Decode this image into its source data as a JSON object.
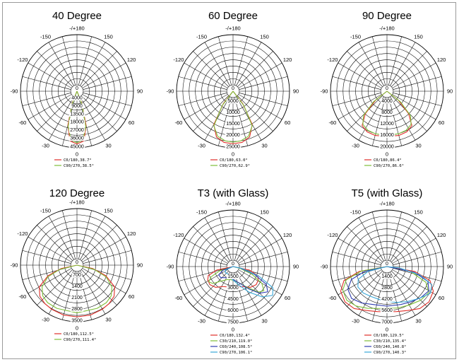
{
  "chart_data": [
    {
      "type": "polar",
      "title": "40 Degree",
      "angle_labels": [
        "-/+180",
        "150",
        "120",
        "90",
        "60",
        "30",
        "0",
        "-30",
        "-60",
        "-90",
        "-120",
        "-150"
      ],
      "radial_labels": [
        "0",
        "4000",
        "9000",
        "13500",
        "18000",
        "27000",
        "36000",
        "45000"
      ],
      "rmax": 45000,
      "series": [
        {
          "name": "C0/180,38.7°",
          "color": "#e0302a",
          "points": [
            [
              -30,
              0
            ],
            [
              -22,
              10000
            ],
            [
              -15,
              28000
            ],
            [
              -8,
              40000
            ],
            [
              0,
              42000
            ],
            [
              8,
              40000
            ],
            [
              15,
              28000
            ],
            [
              22,
              10000
            ],
            [
              30,
              0
            ]
          ]
        },
        {
          "name": "C90/270,38.5°",
          "color": "#7fbf3a",
          "points": [
            [
              -30,
              0
            ],
            [
              -21,
              11000
            ],
            [
              -14,
              29000
            ],
            [
              -7,
              39000
            ],
            [
              0,
              41000
            ],
            [
              7,
              39000
            ],
            [
              14,
              29000
            ],
            [
              21,
              11000
            ],
            [
              30,
              0
            ]
          ]
        }
      ]
    },
    {
      "type": "polar",
      "title": "60 Degree",
      "angle_labels": [
        "-/+180",
        "150",
        "120",
        "90",
        "60",
        "30",
        "0",
        "-30",
        "-60",
        "-90",
        "-120",
        "-150"
      ],
      "radial_labels": [
        "0",
        "5000",
        "10000",
        "15000",
        "20000",
        "25000"
      ],
      "rmax": 25000,
      "series": [
        {
          "name": "C0/180,63.0°",
          "color": "#e0302a",
          "points": [
            [
              -45,
              0
            ],
            [
              -38,
              7000
            ],
            [
              -30,
              17000
            ],
            [
              -20,
              21500
            ],
            [
              -10,
              23000
            ],
            [
              0,
              23200
            ],
            [
              10,
              23000
            ],
            [
              20,
              21500
            ],
            [
              30,
              17000
            ],
            [
              38,
              7000
            ],
            [
              45,
              0
            ]
          ]
        },
        {
          "name": "C90/270,62.9°",
          "color": "#7fbf3a",
          "points": [
            [
              -45,
              0
            ],
            [
              -37,
              8000
            ],
            [
              -29,
              17500
            ],
            [
              -19,
              21000
            ],
            [
              -9,
              22200
            ],
            [
              0,
              22500
            ],
            [
              9,
              22200
            ],
            [
              19,
              21000
            ],
            [
              29,
              17500
            ],
            [
              37,
              8000
            ],
            [
              45,
              0
            ]
          ]
        }
      ]
    },
    {
      "type": "polar",
      "title": "90 Degree",
      "angle_labels": [
        "-/+180",
        "150",
        "120",
        "90",
        "60",
        "30",
        "0",
        "-30",
        "-60",
        "-90",
        "-120",
        "-150"
      ],
      "radial_labels": [
        "0",
        "4000",
        "8000",
        "12000",
        "16000",
        "20000"
      ],
      "rmax": 20000,
      "series": [
        {
          "name": "C0/180,86.4°",
          "color": "#e0302a",
          "points": [
            [
              -60,
              0
            ],
            [
              -52,
              5000
            ],
            [
              -44,
              11000
            ],
            [
              -36,
              15000
            ],
            [
              -26,
              16000
            ],
            [
              -15,
              16200
            ],
            [
              0,
              16000
            ],
            [
              15,
              16200
            ],
            [
              26,
              16000
            ],
            [
              36,
              15000
            ],
            [
              44,
              11000
            ],
            [
              52,
              5000
            ],
            [
              60,
              0
            ]
          ]
        },
        {
          "name": "C90/270,86.6°",
          "color": "#7fbf3a",
          "points": [
            [
              -60,
              0
            ],
            [
              -52,
              6000
            ],
            [
              -44,
              12000
            ],
            [
              -36,
              14500
            ],
            [
              -26,
              15400
            ],
            [
              -15,
              15600
            ],
            [
              0,
              15500
            ],
            [
              15,
              15600
            ],
            [
              26,
              15400
            ],
            [
              36,
              14500
            ],
            [
              44,
              12000
            ],
            [
              52,
              6000
            ],
            [
              60,
              0
            ]
          ]
        }
      ]
    },
    {
      "type": "polar",
      "title": "120 Degree",
      "angle_labels": [
        "-/+180",
        "150",
        "120",
        "90",
        "60",
        "30",
        "0",
        "-30",
        "-60",
        "-90",
        "-120",
        "-150"
      ],
      "radial_labels": [
        "0",
        "700",
        "1400",
        "2100",
        "2800",
        "3500"
      ],
      "rmax": 3500,
      "series": [
        {
          "name": "C0/180,112.5°",
          "color": "#e0302a",
          "points": [
            [
              -85,
              0
            ],
            [
              -78,
              1000
            ],
            [
              -70,
              1900
            ],
            [
              -60,
              2700
            ],
            [
              -50,
              3000
            ],
            [
              -40,
              3100
            ],
            [
              -30,
              3150
            ],
            [
              -15,
              3200
            ],
            [
              0,
              3200
            ],
            [
              15,
              3200
            ],
            [
              30,
              3150
            ],
            [
              40,
              3100
            ],
            [
              50,
              3000
            ],
            [
              60,
              2700
            ],
            [
              70,
              1900
            ],
            [
              78,
              1000
            ],
            [
              85,
              0
            ]
          ]
        },
        {
          "name": "C90/270,111.4°",
          "color": "#7fbf3a",
          "points": [
            [
              -84,
              0
            ],
            [
              -76,
              1100
            ],
            [
              -68,
              1950
            ],
            [
              -58,
              2550
            ],
            [
              -48,
              2850
            ],
            [
              -38,
              2950
            ],
            [
              -25,
              2950
            ],
            [
              0,
              2950
            ],
            [
              25,
              2950
            ],
            [
              38,
              2950
            ],
            [
              48,
              2850
            ],
            [
              58,
              2550
            ],
            [
              68,
              1950
            ],
            [
              76,
              1100
            ],
            [
              84,
              0
            ]
          ]
        }
      ]
    },
    {
      "type": "polar",
      "title": "T3 (with Glass)",
      "angle_labels": [
        "-/+180",
        "150",
        "120",
        "90",
        "60",
        "30",
        "0",
        "-30",
        "-60",
        "-90",
        "-120",
        "-150"
      ],
      "radial_labels": [
        "0",
        "1500",
        "3000",
        "4500",
        "6000",
        "7500"
      ],
      "rmax": 7500,
      "series": [
        {
          "name": "C0/180,132.4°",
          "color": "#e0302a",
          "points": [
            [
              -85,
              0
            ],
            [
              -78,
              2200
            ],
            [
              -70,
              3500
            ],
            [
              -62,
              3800
            ],
            [
              -52,
              3900
            ],
            [
              -40,
              3600
            ],
            [
              -28,
              3000
            ],
            [
              -15,
              2800
            ],
            [
              0,
              2600
            ],
            [
              15,
              2800
            ],
            [
              28,
              3000
            ],
            [
              40,
              3600
            ],
            [
              52,
              3900
            ],
            [
              62,
              3800
            ],
            [
              70,
              3500
            ],
            [
              78,
              2200
            ],
            [
              85,
              0
            ]
          ]
        },
        {
          "name": "C30/210,119.0°",
          "color": "#7fbf3a",
          "points": [
            [
              -80,
              0
            ],
            [
              -72,
              1900
            ],
            [
              -65,
              3200
            ],
            [
              -58,
              3800
            ],
            [
              -50,
              3500
            ],
            [
              -38,
              2400
            ],
            [
              -20,
              1800
            ],
            [
              0,
              1800
            ],
            [
              20,
              2300
            ],
            [
              35,
              3400
            ],
            [
              45,
              4800
            ],
            [
              52,
              5200
            ],
            [
              60,
              4400
            ],
            [
              68,
              2700
            ],
            [
              75,
              1000
            ],
            [
              80,
              0
            ]
          ]
        },
        {
          "name": "C60/240,108.5°",
          "color": "#2f3db0",
          "points": [
            [
              -78,
              0
            ],
            [
              -70,
              1400
            ],
            [
              -60,
              2200
            ],
            [
              -48,
              2200
            ],
            [
              -35,
              1800
            ],
            [
              -20,
              1600
            ],
            [
              0,
              1700
            ],
            [
              20,
              2300
            ],
            [
              35,
              3600
            ],
            [
              45,
              5000
            ],
            [
              54,
              5700
            ],
            [
              62,
              5000
            ],
            [
              70,
              3000
            ],
            [
              78,
              1000
            ],
            [
              85,
              0
            ]
          ]
        },
        {
          "name": "C90/270,106.1°",
          "color": "#3aa8d8",
          "points": [
            [
              -75,
              0
            ],
            [
              -65,
              1100
            ],
            [
              -52,
              1300
            ],
            [
              -35,
              1200
            ],
            [
              -15,
              1500
            ],
            [
              0,
              1800
            ],
            [
              18,
              2600
            ],
            [
              32,
              4000
            ],
            [
              44,
              5600
            ],
            [
              54,
              6500
            ],
            [
              62,
              6000
            ],
            [
              70,
              3600
            ],
            [
              78,
              1200
            ],
            [
              84,
              0
            ]
          ]
        }
      ]
    },
    {
      "type": "polar",
      "title": "T5 (with Glass)",
      "angle_labels": [
        "-/+180",
        "150",
        "120",
        "90",
        "60",
        "30",
        "0",
        "-30",
        "-60",
        "-90",
        "-120",
        "-150"
      ],
      "radial_labels": [
        "0",
        "1400",
        "2800",
        "4200",
        "5600",
        "7000"
      ],
      "rmax": 7000,
      "series": [
        {
          "name": "C0/180,129.5°",
          "color": "#e0302a",
          "points": [
            [
              -88,
              0
            ],
            [
              -80,
              3500
            ],
            [
              -72,
              5600
            ],
            [
              -62,
              6500
            ],
            [
              -50,
              6800
            ],
            [
              -38,
              6600
            ],
            [
              -25,
              6000
            ],
            [
              -12,
              5700
            ],
            [
              0,
              5600
            ],
            [
              12,
              5700
            ],
            [
              25,
              6000
            ],
            [
              38,
              6600
            ],
            [
              50,
              6800
            ],
            [
              62,
              6500
            ],
            [
              72,
              5600
            ],
            [
              80,
              3500
            ],
            [
              88,
              0
            ]
          ]
        },
        {
          "name": "C30/210,135.4°",
          "color": "#7fbf3a",
          "points": [
            [
              -88,
              0
            ],
            [
              -80,
              3200
            ],
            [
              -72,
              5300
            ],
            [
              -62,
              6200
            ],
            [
              -50,
              6500
            ],
            [
              -38,
              6200
            ],
            [
              -25,
              5700
            ],
            [
              -12,
              5300
            ],
            [
              0,
              5200
            ],
            [
              15,
              5300
            ],
            [
              30,
              5500
            ],
            [
              45,
              5900
            ],
            [
              58,
              6100
            ],
            [
              68,
              5200
            ],
            [
              78,
              3000
            ],
            [
              88,
              0
            ]
          ]
        },
        {
          "name": "C60/240,140.8°",
          "color": "#2f3db0",
          "points": [
            [
              -86,
              0
            ],
            [
              -78,
              2800
            ],
            [
              -70,
              4700
            ],
            [
              -60,
              5600
            ],
            [
              -48,
              5900
            ],
            [
              -35,
              5500
            ],
            [
              -20,
              5000
            ],
            [
              0,
              4900
            ],
            [
              20,
              5000
            ],
            [
              35,
              5300
            ],
            [
              48,
              5700
            ],
            [
              60,
              6000
            ],
            [
              70,
              5400
            ],
            [
              78,
              3500
            ],
            [
              86,
              0
            ]
          ]
        },
        {
          "name": "C90/270,140.3°",
          "color": "#3aa8d8",
          "points": [
            [
              -85,
              0
            ],
            [
              -76,
              2400
            ],
            [
              -66,
              3900
            ],
            [
              -55,
              4400
            ],
            [
              -42,
              4400
            ],
            [
              -28,
              4200
            ],
            [
              -12,
              4200
            ],
            [
              0,
              4300
            ],
            [
              15,
              4600
            ],
            [
              30,
              5000
            ],
            [
              45,
              5600
            ],
            [
              58,
              6300
            ],
            [
              68,
              6000
            ],
            [
              76,
              4200
            ],
            [
              84,
              1500
            ],
            [
              88,
              0
            ]
          ]
        }
      ]
    }
  ]
}
